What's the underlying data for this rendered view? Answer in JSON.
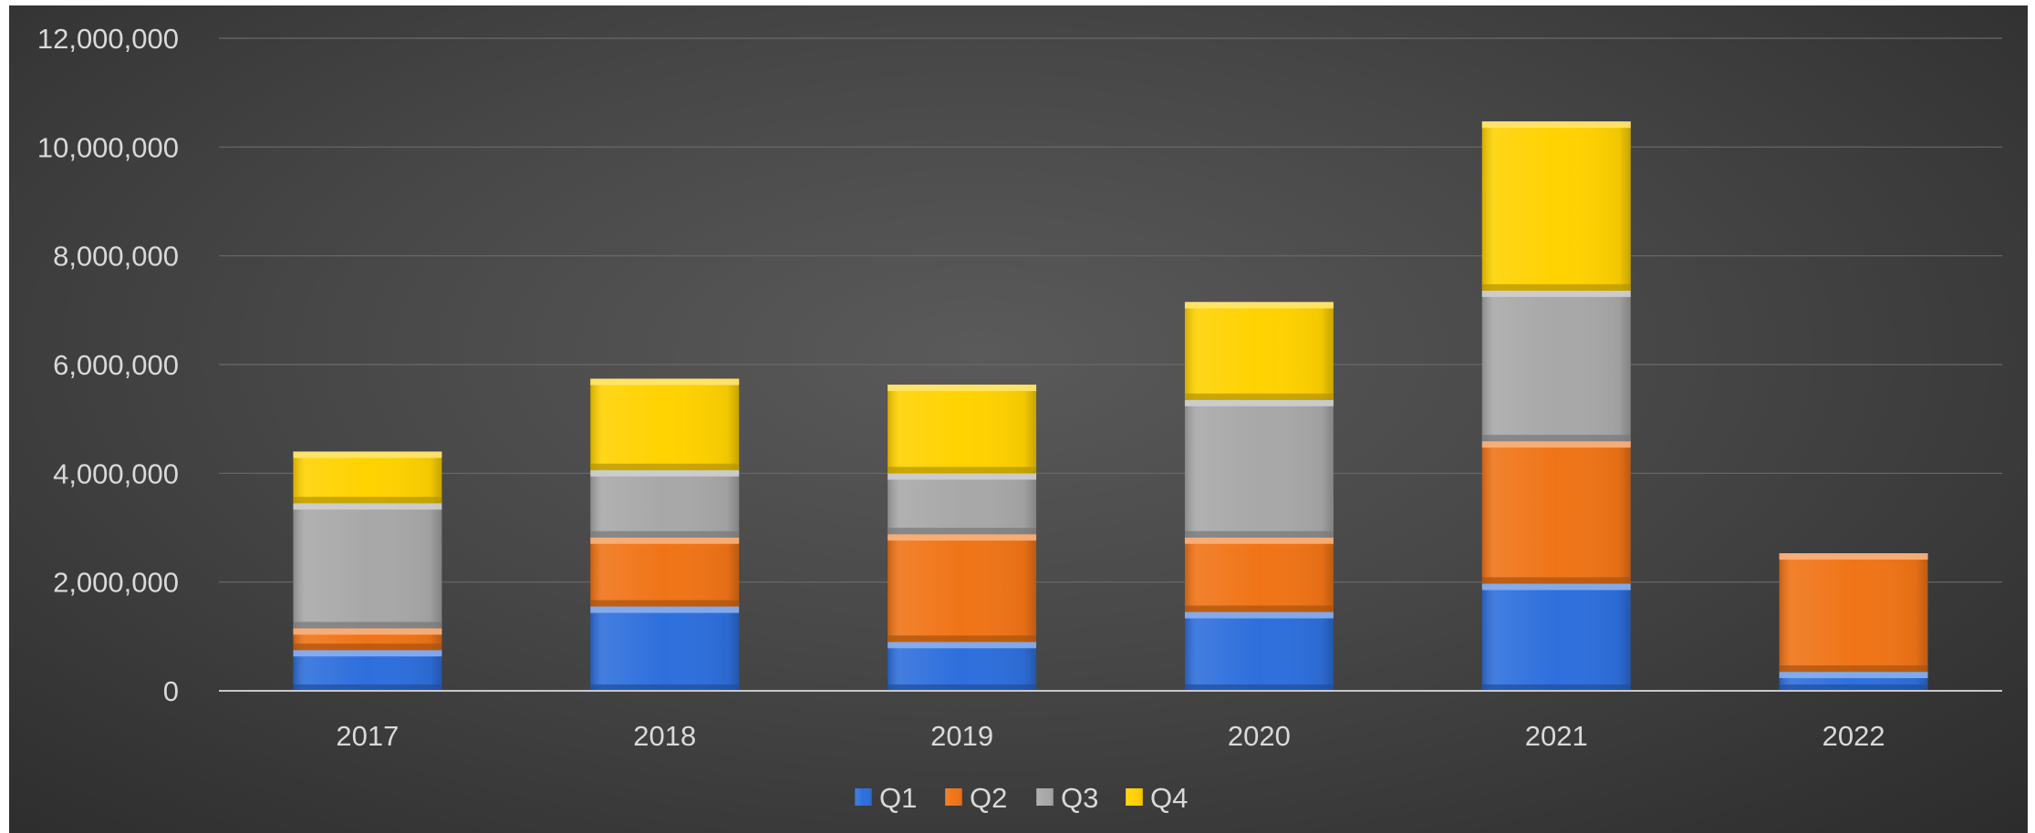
{
  "chart_data": {
    "type": "bar",
    "stacked": true,
    "title": "",
    "xlabel": "",
    "ylabel": "",
    "categories": [
      "2017",
      "2018",
      "2019",
      "2020",
      "2021",
      "2022"
    ],
    "series": [
      {
        "name": "Q1",
        "color": "#2e6fdc",
        "values": [
          750000,
          1550000,
          900000,
          1450000,
          1970000,
          350000
        ]
      },
      {
        "name": "Q2",
        "color": "#f07417",
        "values": [
          400000,
          1270000,
          1980000,
          1370000,
          2620000,
          2180000
        ]
      },
      {
        "name": "Q3",
        "color": "#a8a8a8",
        "values": [
          2300000,
          1240000,
          1120000,
          2530000,
          2770000,
          0
        ]
      },
      {
        "name": "Q4",
        "color": "#ffd200",
        "values": [
          950000,
          1680000,
          1630000,
          1800000,
          3110000,
          0
        ]
      }
    ],
    "ylim": [
      0,
      12000000
    ],
    "yticks": [
      "0",
      "2,000,000",
      "4,000,000",
      "6,000,000",
      "8,000,000",
      "10,000,000",
      "12,000,000"
    ],
    "grid": true,
    "legend_position": "bottom"
  }
}
